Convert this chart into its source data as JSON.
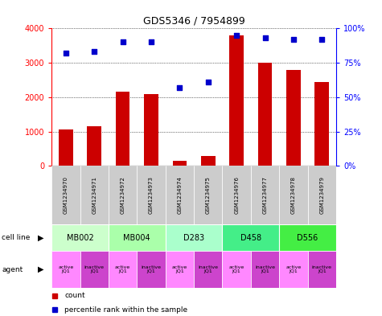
{
  "title": "GDS5346 / 7954899",
  "samples": [
    "GSM1234970",
    "GSM1234971",
    "GSM1234972",
    "GSM1234973",
    "GSM1234974",
    "GSM1234975",
    "GSM1234976",
    "GSM1234977",
    "GSM1234978",
    "GSM1234979"
  ],
  "counts": [
    1050,
    1150,
    2150,
    2100,
    150,
    280,
    3800,
    3000,
    2800,
    2450
  ],
  "percentiles": [
    82,
    83,
    90,
    90,
    57,
    61,
    95,
    93,
    92,
    92
  ],
  "bar_color": "#cc0000",
  "dot_color": "#0000cc",
  "cell_lines": [
    {
      "label": "MB002",
      "start": 0,
      "end": 2,
      "color": "#ccffcc"
    },
    {
      "label": "MB004",
      "start": 2,
      "end": 4,
      "color": "#aaffaa"
    },
    {
      "label": "D283",
      "start": 4,
      "end": 6,
      "color": "#aaffcc"
    },
    {
      "label": "D458",
      "start": 6,
      "end": 8,
      "color": "#44ee88"
    },
    {
      "label": "D556",
      "start": 8,
      "end": 10,
      "color": "#44ee44"
    }
  ],
  "agent_active_color": "#ff88ff",
  "agent_inactive_color": "#cc44cc",
  "sample_box_color": "#cccccc",
  "ylim_left": [
    0,
    4000
  ],
  "ylim_right": [
    0,
    100
  ],
  "yticks_left": [
    0,
    1000,
    2000,
    3000,
    4000
  ],
  "yticks_right": [
    0,
    25,
    50,
    75,
    100
  ],
  "ytick_labels_right": [
    "0%",
    "25%",
    "50%",
    "75%",
    "100%"
  ],
  "background_color": "#ffffff",
  "bar_width": 0.5
}
